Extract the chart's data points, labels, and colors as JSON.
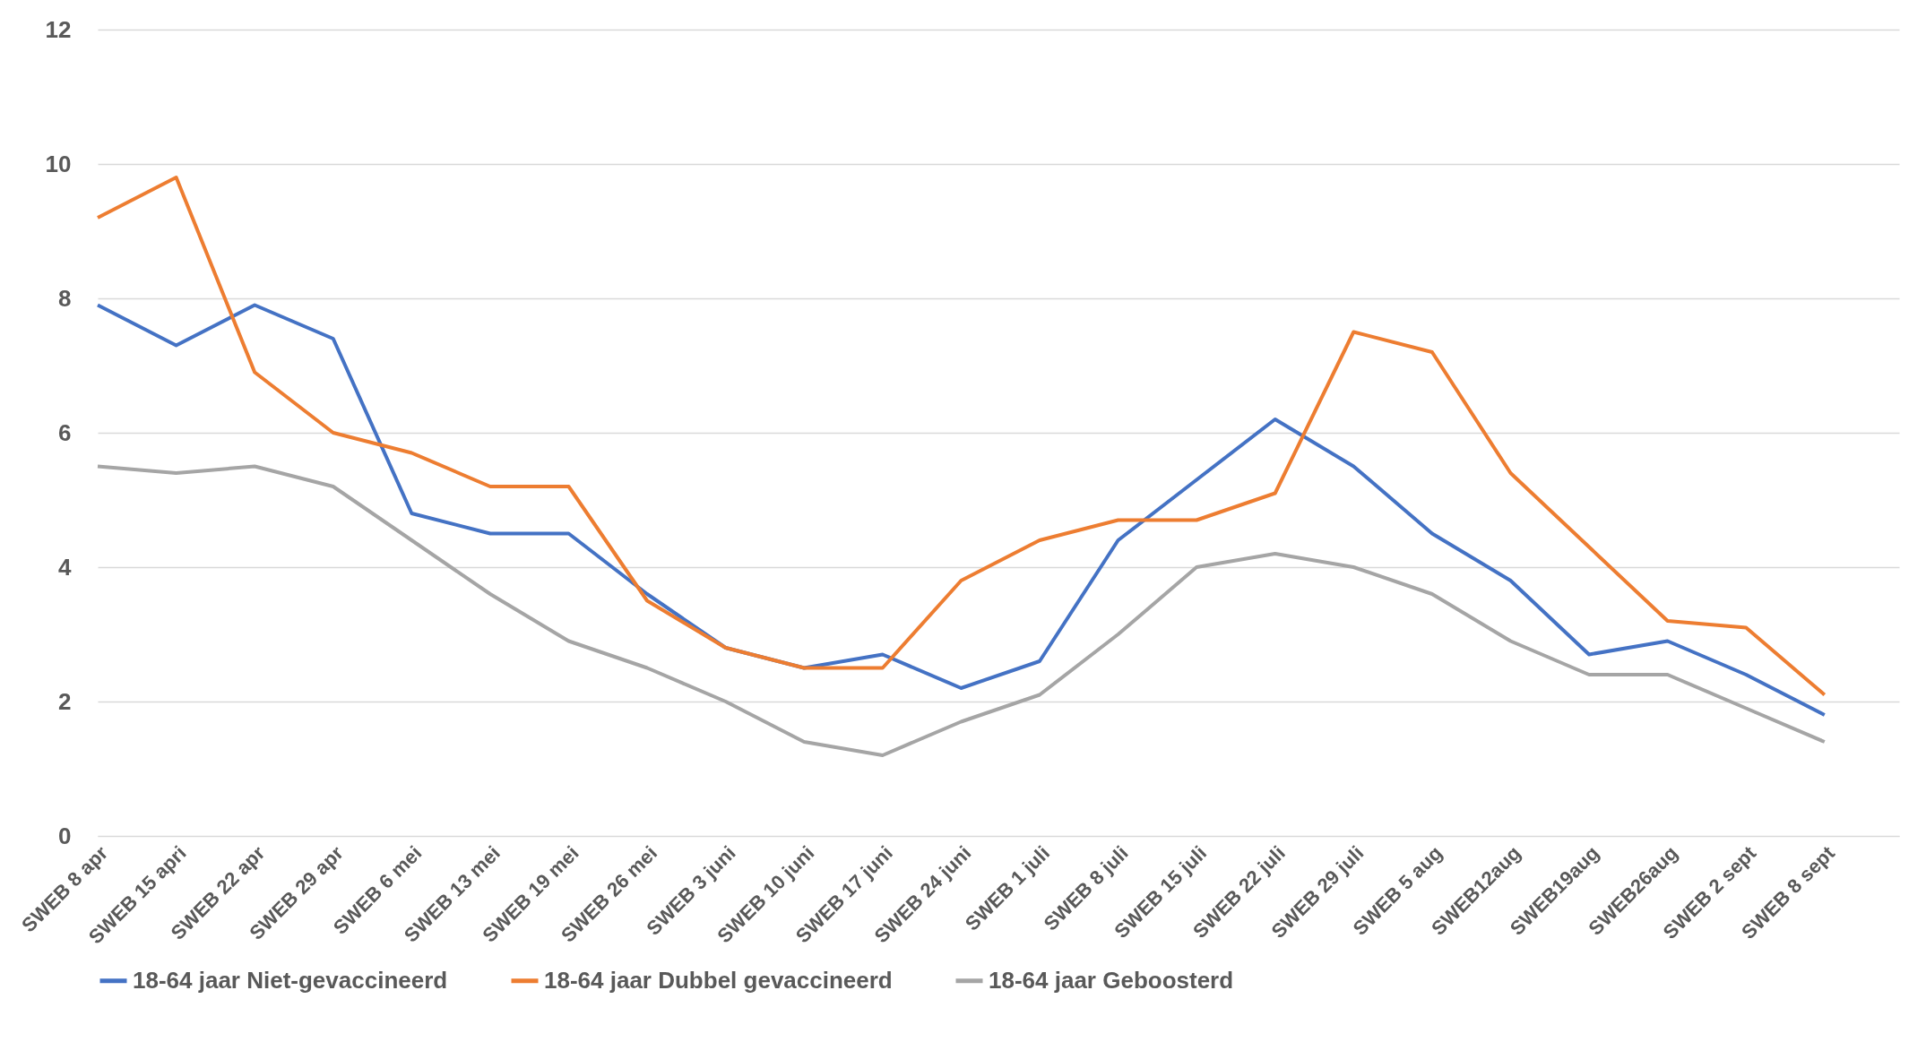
{
  "chart_data": {
    "type": "line",
    "categories": [
      "SWEB 8 apr",
      "SWEB 15 apri",
      "SWEB 22 apr",
      "SWEB 29 apr",
      "SWEB 6 mei",
      "SWEB 13 mei",
      "SWEB 19 mei",
      "SWEB 26 mei",
      "SWEB 3 juni",
      "SWEB 10 juni",
      "SWEB 17 juni",
      "SWEB 24 juni",
      "SWEB 1 juli",
      "SWEB 8 juli",
      "SWEB 15 juli",
      "SWEB 22 juli",
      "SWEB 29 juli",
      "SWEB 5 aug",
      "SWEB12aug",
      "SWEB19aug",
      "SWEB26aug",
      "SWEB 2 sept",
      "SWEB 8 sept"
    ],
    "series": [
      {
        "name": "18-64 jaar Niet-gevaccineerd",
        "color": "#4472c4",
        "values": [
          7.9,
          7.3,
          7.9,
          7.4,
          4.8,
          4.5,
          4.5,
          3.6,
          2.8,
          2.5,
          2.7,
          2.2,
          2.6,
          4.4,
          5.3,
          6.2,
          5.5,
          4.5,
          3.8,
          2.7,
          2.9,
          2.4,
          1.8
        ]
      },
      {
        "name": "18-64 jaar Dubbel gevaccineerd",
        "color": "#ed7d31",
        "values": [
          9.2,
          9.8,
          6.9,
          6.0,
          5.7,
          5.2,
          5.2,
          3.5,
          2.8,
          2.5,
          2.5,
          3.8,
          4.4,
          4.7,
          4.7,
          5.1,
          7.5,
          7.2,
          5.4,
          4.3,
          3.2,
          3.1,
          2.1
        ]
      },
      {
        "name": "18-64 jaar Geboosterd",
        "color": "#a5a5a5",
        "values": [
          5.5,
          5.4,
          5.5,
          5.2,
          4.4,
          3.6,
          2.9,
          2.5,
          2.0,
          1.4,
          1.2,
          1.7,
          2.1,
          3.0,
          4.0,
          4.2,
          4.0,
          3.6,
          2.9,
          2.4,
          2.4,
          1.9,
          1.4
        ]
      }
    ],
    "ylim": [
      0,
      12
    ],
    "yticks": [
      0,
      2,
      4,
      6,
      8,
      10,
      12
    ],
    "grid": "y",
    "legend": "bottom",
    "marker": "none"
  }
}
